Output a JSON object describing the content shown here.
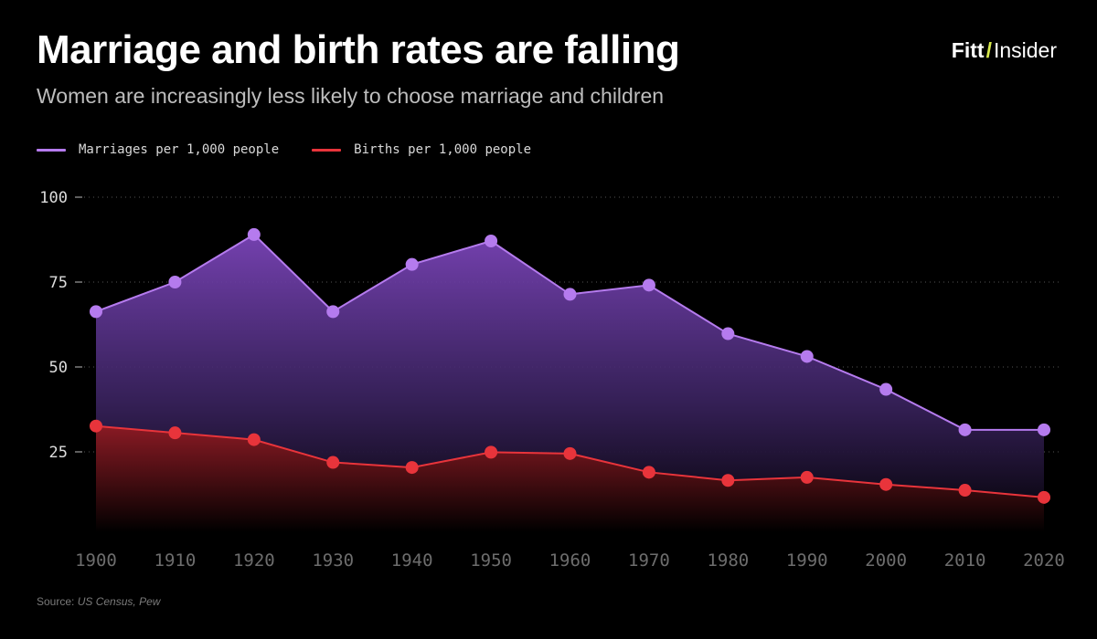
{
  "header": {
    "title": "Marriage and birth rates are falling",
    "subtitle": "Women are increasingly less likely to choose marriage and children",
    "brand_part1": "Fitt",
    "brand_sep": "/",
    "brand_part2": "Insider"
  },
  "source": {
    "label": "Source: ",
    "value": "US Census, Pew"
  },
  "colors": {
    "marriages": "#b57bee",
    "births": "#e8343b",
    "background": "#000000",
    "grid": "#555555",
    "brand_accent": "#d6e84a"
  },
  "chart_data": {
    "type": "area",
    "x": [
      "1900",
      "1910",
      "1920",
      "1930",
      "1940",
      "1950",
      "1960",
      "1970",
      "1980",
      "1990",
      "2000",
      "2010",
      "2020"
    ],
    "series": [
      {
        "name": "Marriages per 1,000 people",
        "values": [
          66.3,
          75.0,
          89.0,
          66.3,
          80.2,
          87.1,
          71.4,
          74.1,
          59.8,
          53.1,
          43.4,
          31.5,
          31.5
        ]
      },
      {
        "name": "Births per 1,000 people",
        "values": [
          32.6,
          30.6,
          28.6,
          21.9,
          20.4,
          24.9,
          24.5,
          19.0,
          16.6,
          17.5,
          15.4,
          13.7,
          11.6
        ]
      }
    ],
    "yticks": [
      100,
      75,
      50,
      25
    ],
    "ylim": [
      0,
      100
    ],
    "grid": true,
    "legend_position": "top-left",
    "xlabel": "",
    "ylabel": ""
  }
}
